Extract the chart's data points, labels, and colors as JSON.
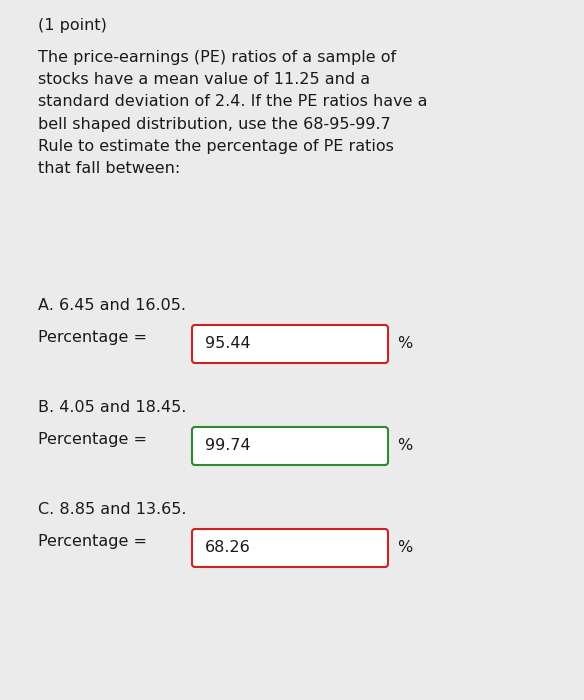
{
  "background_color": "#ebebeb",
  "text_color": "#1a1a1a",
  "font_family": "DejaVu Sans",
  "point_text": "(1 point)",
  "main_text": "The price-earnings (PE) ratios of a sample of\nstocks have a mean value of 11.25 and a\nstandard deviation of 2.4. If the PE ratios have a\nbell shaped distribution, use the 68-95-99.7\nRule to estimate the percentage of PE ratios\nthat fall between:",
  "section_A_label": "A. 6.45 and 16.05.",
  "section_A_value": "95.44",
  "section_A_box_color": "#cc2222",
  "section_B_label": "B. 4.05 and 18.45.",
  "section_B_value": "99.74",
  "section_B_box_color": "#2d8a2d",
  "section_C_label": "C. 8.85 and 13.65.",
  "section_C_value": "68.26",
  "section_C_box_color": "#cc2222",
  "percentage_label": "Percentage =",
  "percent_sign": "%",
  "font_size": 11.5
}
